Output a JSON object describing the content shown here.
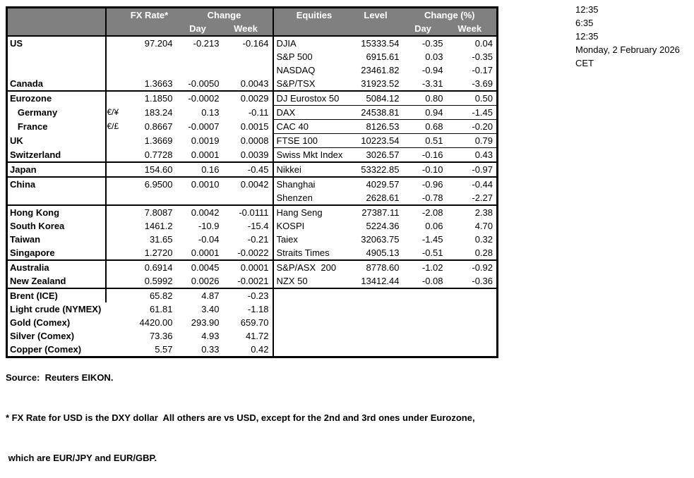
{
  "colors": {
    "header_bg": "#808080",
    "header_text": "#FFFFFF",
    "border": "#000000",
    "background": "#FFFFFF"
  },
  "header": {
    "fx": {
      "rate": "FX Rate*",
      "change": "Change",
      "day": "Day",
      "week": "Week"
    },
    "equities": {
      "name": "Equities",
      "level": "Level",
      "change": "Change (%)",
      "day": "Day",
      "week": "Week"
    }
  },
  "timestamps": [
    "12:35",
    "6:35",
    "12:35",
    "Monday, 2 February 2026",
    "CET"
  ],
  "rows": [
    {
      "label": "US",
      "sym": "",
      "fx": "97.204",
      "fx_day": "-0.213",
      "fx_week": "-0.164",
      "eq": "DJIA",
      "level": "15333.54",
      "eq_day": "-0.35",
      "eq_week": "0.04"
    },
    {
      "label": "",
      "sym": "",
      "fx": "",
      "fx_day": "",
      "fx_week": "",
      "eq": "S&P 500",
      "level": "6915.61",
      "eq_day": "0.03",
      "eq_week": "-0.35"
    },
    {
      "label": "",
      "sym": "",
      "fx": "",
      "fx_day": "",
      "fx_week": "",
      "eq": "NASDAQ",
      "level": "23461.82",
      "eq_day": "-0.94",
      "eq_week": "-0.17"
    },
    {
      "label": "Canada",
      "sym": "",
      "fx": "1.3663",
      "fx_day": "-0.0050",
      "fx_week": "0.0043",
      "eq": "S&P/TSX",
      "level": "31923.52",
      "eq_day": "-3.31",
      "eq_week": "-3.69"
    },
    {
      "label": "Eurozone",
      "sym": "",
      "fx": "1.1850",
      "fx_day": "-0.0002",
      "fx_week": "0.0029",
      "eq": "DJ Eurostox 50",
      "level": "5084.12",
      "eq_day": "0.80",
      "eq_week": "0.50",
      "group_start": true
    },
    {
      "label": "   Germany",
      "sym": "€/¥",
      "fx": "183.24",
      "fx_day": "0.13",
      "fx_week": "-0.11",
      "eq": "DAX",
      "level": "24538.81",
      "eq_day": "0.94",
      "eq_week": "-1.45",
      "eq_divider": true
    },
    {
      "label": "   France",
      "sym": "€/£",
      "fx": "0.8667",
      "fx_day": "-0.0007",
      "fx_week": "0.0015",
      "eq": "CAC 40",
      "level": "8126.53",
      "eq_day": "0.68",
      "eq_week": "-0.20",
      "eq_divider": true
    },
    {
      "label": "UK",
      "sym": "",
      "fx": "1.3669",
      "fx_day": "0.0019",
      "fx_week": "0.0008",
      "eq": "FTSE 100",
      "level": "10223.54",
      "eq_day": "0.51",
      "eq_week": "0.79",
      "eq_divider": true
    },
    {
      "label": "Switzerland",
      "sym": "",
      "fx": "0.7728",
      "fx_day": "0.0001",
      "fx_week": "0.0039",
      "eq": "Swiss Mkt Index",
      "level": "3026.57",
      "eq_day": "-0.16",
      "eq_week": "0.43",
      "eq_divider": true
    },
    {
      "label": "Japan",
      "sym": "",
      "fx": "154.60",
      "fx_day": "0.16",
      "fx_week": "-0.45",
      "eq": "Nikkei",
      "level": "53322.85",
      "eq_day": "-0.10",
      "eq_week": "-0.97",
      "group_start": true
    },
    {
      "label": "China",
      "sym": "",
      "fx": "6.9500",
      "fx_day": "0.0010",
      "fx_week": "0.0042",
      "eq": "Shanghai",
      "level": "4029.57",
      "eq_day": "-0.96",
      "eq_week": "-0.44",
      "group_start": true
    },
    {
      "label": "",
      "sym": "",
      "fx": "",
      "fx_day": "",
      "fx_week": "",
      "eq": "Shenzen",
      "level": "2628.61",
      "eq_day": "-0.78",
      "eq_week": "-2.27"
    },
    {
      "label": "Hong Kong",
      "sym": "",
      "fx": "7.8087",
      "fx_day": "0.0042",
      "fx_week": "-0.0111",
      "eq": "Hang Seng",
      "level": "27387.11",
      "eq_day": "-2.08",
      "eq_week": "2.38",
      "group_start": true
    },
    {
      "label": "South Korea",
      "sym": "",
      "fx": "1461.2",
      "fx_day": "-10.9",
      "fx_week": "-15.4",
      "eq": "KOSPI",
      "level": "5224.36",
      "eq_day": "0.06",
      "eq_week": "4.70"
    },
    {
      "label": "Taiwan",
      "sym": "",
      "fx": "31.65",
      "fx_day": "-0.04",
      "fx_week": "-0.21",
      "eq": "Taiex",
      "level": "32063.75",
      "eq_day": "-1.45",
      "eq_week": "0.32"
    },
    {
      "label": "Singapore",
      "sym": "",
      "fx": "1.2720",
      "fx_day": "0.0001",
      "fx_week": "-0.0022",
      "eq": "Straits Times",
      "level": "4905.13",
      "eq_day": "-0.51",
      "eq_week": "0.28"
    },
    {
      "label": "Australia",
      "sym": "",
      "fx": "0.6914",
      "fx_day": "0.0045",
      "fx_week": "0.0001",
      "eq": "S&P/ASX  200",
      "level": "8778.60",
      "eq_day": "-1.02",
      "eq_week": "-0.92",
      "group_start": true
    },
    {
      "label": "New Zealand",
      "sym": "",
      "fx": "0.5992",
      "fx_day": "0.0026",
      "fx_week": "-0.0021",
      "eq": "NZX 50",
      "level": "13412.44",
      "eq_day": "-0.08",
      "eq_week": "-0.36"
    },
    {
      "label": "Brent (ICE)",
      "sym": "",
      "fx": "65.82",
      "fx_day": "4.87",
      "fx_week": "-0.23",
      "eq": "",
      "level": "",
      "eq_day": "",
      "eq_week": "",
      "group_start": true
    },
    {
      "label": "Light crude (NYMEX)",
      "sym": "",
      "fx": "61.81",
      "fx_day": "3.40",
      "fx_week": "-1.18",
      "eq": "",
      "level": "",
      "eq_day": "",
      "eq_week": "",
      "label_divider_hidden": true
    },
    {
      "label": "Gold (Comex)",
      "sym": "",
      "fx": "4420.00",
      "fx_day": "293.90",
      "fx_week": "659.70",
      "eq": "",
      "level": "",
      "eq_day": "",
      "eq_week": "",
      "label_divider_hidden": true
    },
    {
      "label": "Silver (Comex)",
      "sym": "",
      "fx": "73.36",
      "fx_day": "4.93",
      "fx_week": "41.72",
      "eq": "",
      "level": "",
      "eq_day": "",
      "eq_week": "",
      "label_divider_hidden": true
    },
    {
      "label": "Copper (Comex)",
      "sym": "",
      "fx": "5.57",
      "fx_day": "0.33",
      "fx_week": "0.42",
      "eq": "",
      "level": "",
      "eq_day": "",
      "eq_week": "",
      "label_divider_hidden": true
    }
  ],
  "footer": {
    "source": "Source:  Reuters EIKON.",
    "note1": "* FX Rate for USD is the DXY dollar  All others are vs USD, except for the 2nd and 3rd ones under Eurozone,",
    "note2": " which are EUR/JPY and EUR/GBP."
  }
}
